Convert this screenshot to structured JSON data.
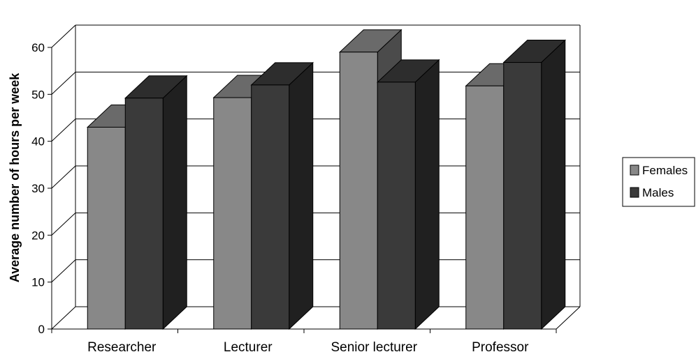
{
  "chart_data": {
    "type": "bar",
    "title": "",
    "xlabel": "",
    "ylabel": "Average number of hours per week",
    "categories": [
      "Researcher",
      "Lecturer",
      "Senior lecturer",
      "Professor"
    ],
    "series": [
      {
        "name": "Females",
        "values": [
          43,
          49.3,
          59,
          51.8
        ],
        "color": "#888888"
      },
      {
        "name": "Males",
        "values": [
          49.2,
          52,
          52.6,
          56.8
        ],
        "color": "#3a3a3a"
      }
    ],
    "ylim": [
      0,
      60
    ],
    "yticks": [
      "0",
      "10",
      "20",
      "30",
      "40",
      "50",
      "60"
    ],
    "grid": true,
    "legend_position": "right",
    "style": "3d-clustered-column"
  }
}
